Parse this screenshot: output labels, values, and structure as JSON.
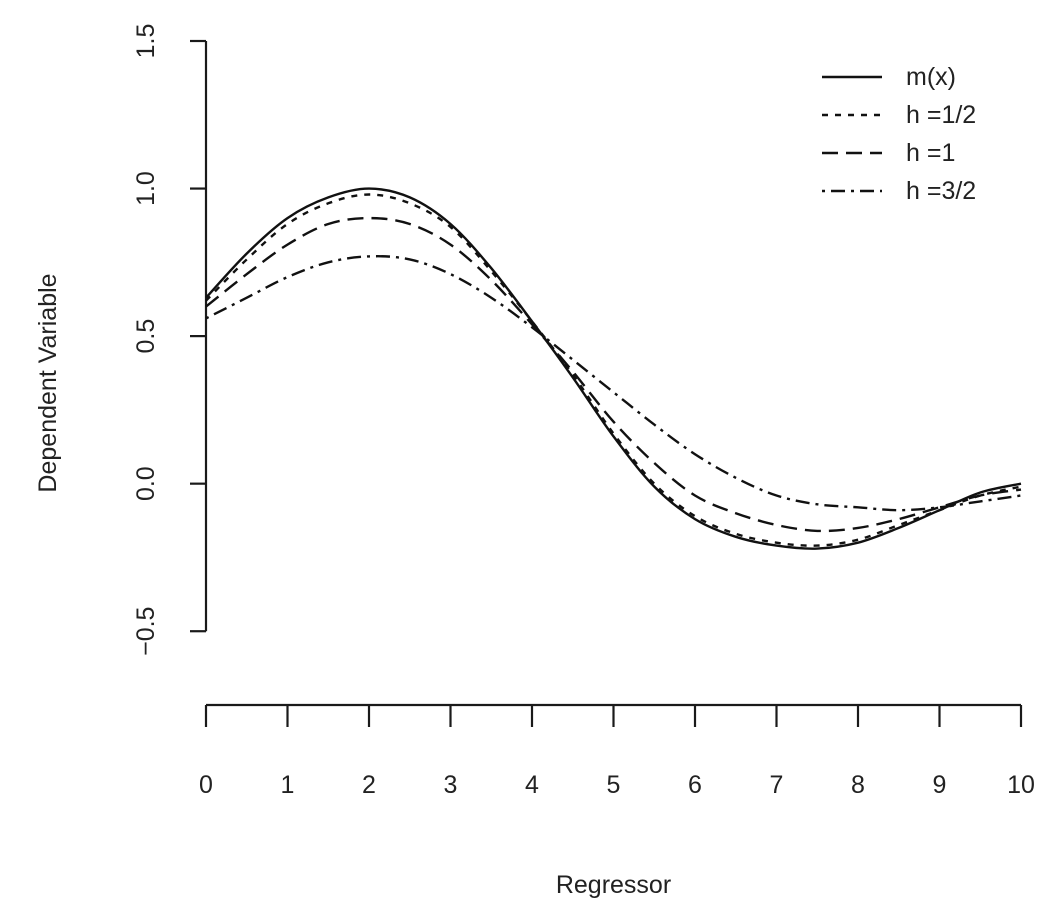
{
  "chart_data": {
    "type": "line",
    "title": "",
    "xlabel": "Regressor",
    "ylabel": "Dependent Variable",
    "xlim": [
      0,
      10
    ],
    "ylim": [
      -0.75,
      1.5
    ],
    "xticks": [
      0,
      1,
      2,
      3,
      4,
      5,
      6,
      7,
      8,
      9,
      10
    ],
    "xtick_labels": [
      "0",
      "1",
      "2",
      "3",
      "4",
      "5",
      "6",
      "7",
      "8",
      "9",
      "10"
    ],
    "yticks": [
      -0.5,
      0.0,
      0.5,
      1.0,
      1.5
    ],
    "ytick_labels": [
      "-0.5",
      "0.0",
      "0.5",
      "1.0",
      "1.5"
    ],
    "legend_position": "top-right",
    "grid": false,
    "x": [
      0,
      0.5,
      1,
      1.5,
      2,
      2.5,
      3,
      3.5,
      4,
      4.5,
      5,
      5.5,
      6,
      6.5,
      7,
      7.5,
      8,
      8.5,
      9,
      9.5,
      10
    ],
    "series": [
      {
        "name": "m(x)",
        "style": "solid",
        "values": [
          0.63,
          0.78,
          0.9,
          0.97,
          1.0,
          0.97,
          0.88,
          0.73,
          0.55,
          0.36,
          0.16,
          -0.01,
          -0.12,
          -0.18,
          -0.21,
          -0.22,
          -0.2,
          -0.15,
          -0.09,
          -0.03,
          0.0
        ]
      },
      {
        "name": "h =1/2",
        "style": "dotted",
        "values": [
          0.62,
          0.76,
          0.88,
          0.95,
          0.98,
          0.95,
          0.87,
          0.72,
          0.55,
          0.37,
          0.17,
          0.0,
          -0.11,
          -0.17,
          -0.2,
          -0.21,
          -0.19,
          -0.14,
          -0.09,
          -0.04,
          -0.01
        ]
      },
      {
        "name": "h =1",
        "style": "dashed",
        "values": [
          0.6,
          0.71,
          0.81,
          0.88,
          0.9,
          0.88,
          0.81,
          0.69,
          0.54,
          0.38,
          0.21,
          0.07,
          -0.04,
          -0.1,
          -0.14,
          -0.16,
          -0.15,
          -0.12,
          -0.08,
          -0.04,
          -0.02
        ]
      },
      {
        "name": "h =3/2",
        "style": "dashdot",
        "values": [
          0.56,
          0.63,
          0.7,
          0.75,
          0.77,
          0.76,
          0.71,
          0.63,
          0.53,
          0.42,
          0.31,
          0.2,
          0.1,
          0.02,
          -0.04,
          -0.07,
          -0.08,
          -0.09,
          -0.08,
          -0.06,
          -0.04
        ]
      }
    ]
  }
}
